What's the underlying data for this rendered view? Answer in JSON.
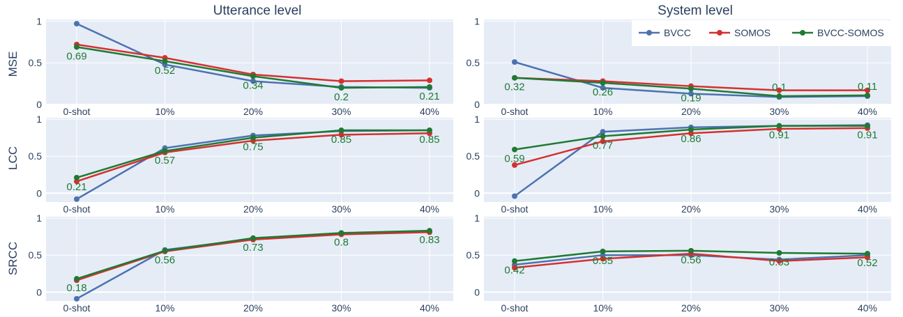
{
  "chart_data": {
    "type": "line",
    "columns": [
      "Utterance level",
      "System level"
    ],
    "rows": [
      "MSE",
      "LCC",
      "SRCC"
    ],
    "categories": [
      "0-shot",
      "10%",
      "20%",
      "30%",
      "40%"
    ],
    "legend": {
      "placement": "top-right",
      "entries": [
        "BVCC",
        "SOMOS",
        "BVCC-SOMOS"
      ]
    },
    "colors": {
      "BVCC": "#4c72b0",
      "SOMOS": "#d62f2f",
      "BVCC-SOMOS": "#1f7a32",
      "panel_bg": "#e5ecf6",
      "grid": "#ffffff"
    },
    "panels": [
      {
        "column": "Utterance level",
        "row": "MSE",
        "ylim": [
          0,
          1.02
        ],
        "yticks": [
          "0",
          "0.5",
          "1"
        ],
        "ytick_values": [
          0,
          0.5,
          1
        ],
        "series": [
          {
            "name": "BVCC",
            "values": [
              0.97,
              0.48,
              0.28,
              0.21,
              0.2
            ]
          },
          {
            "name": "SOMOS",
            "values": [
              0.72,
              0.56,
              0.36,
              0.28,
              0.29
            ]
          },
          {
            "name": "BVCC-SOMOS",
            "values": [
              0.69,
              0.52,
              0.34,
              0.2,
              0.21
            ]
          }
        ],
        "labels": [
          "0.69",
          "0.52",
          "0.34",
          "0.2",
          "0.21"
        ]
      },
      {
        "column": "System level",
        "row": "MSE",
        "ylim": [
          0,
          1.02
        ],
        "yticks": [
          "0",
          "0.5",
          "1"
        ],
        "ytick_values": [
          0,
          0.5,
          1
        ],
        "series": [
          {
            "name": "BVCC",
            "values": [
              0.51,
              0.2,
              0.13,
              0.09,
              0.1
            ]
          },
          {
            "name": "SOMOS",
            "values": [
              0.32,
              0.28,
              0.22,
              0.17,
              0.17
            ]
          },
          {
            "name": "BVCC-SOMOS",
            "values": [
              0.32,
              0.26,
              0.19,
              0.1,
              0.11
            ]
          }
        ],
        "labels": [
          "0.32",
          "0.26",
          "0.19",
          "0.1",
          "0.11"
        ]
      },
      {
        "column": "Utterance level",
        "row": "LCC",
        "ylim": [
          -0.12,
          1.02
        ],
        "yticks": [
          "0",
          "0.5",
          "1"
        ],
        "ytick_values": [
          0,
          0.5,
          1
        ],
        "series": [
          {
            "name": "BVCC",
            "values": [
              -0.08,
              0.61,
              0.78,
              0.84,
              0.85
            ]
          },
          {
            "name": "SOMOS",
            "values": [
              0.16,
              0.55,
              0.71,
              0.79,
              0.81
            ]
          },
          {
            "name": "BVCC-SOMOS",
            "values": [
              0.21,
              0.57,
              0.75,
              0.85,
              0.85
            ]
          }
        ],
        "labels": [
          "0.21",
          "0.57",
          "0.75",
          "0.85",
          "0.85"
        ]
      },
      {
        "column": "System level",
        "row": "LCC",
        "ylim": [
          -0.12,
          1.02
        ],
        "yticks": [
          "0",
          "0.5",
          "1"
        ],
        "ytick_values": [
          0,
          0.5,
          1
        ],
        "series": [
          {
            "name": "BVCC",
            "values": [
              -0.04,
              0.83,
              0.89,
              0.91,
              0.92
            ]
          },
          {
            "name": "SOMOS",
            "values": [
              0.38,
              0.7,
              0.81,
              0.87,
              0.88
            ]
          },
          {
            "name": "BVCC-SOMOS",
            "values": [
              0.59,
              0.77,
              0.86,
              0.91,
              0.91
            ]
          }
        ],
        "labels": [
          "0.59",
          "0.77",
          "0.86",
          "0.91",
          "0.91"
        ]
      },
      {
        "column": "Utterance level",
        "row": "SRCC",
        "ylim": [
          -0.12,
          1.02
        ],
        "yticks": [
          "0",
          "0.5",
          "1"
        ],
        "ytick_values": [
          0,
          0.5,
          1
        ],
        "series": [
          {
            "name": "BVCC",
            "values": [
              -0.09,
              0.57,
              0.72,
              0.79,
              0.82
            ]
          },
          {
            "name": "SOMOS",
            "values": [
              0.16,
              0.55,
              0.71,
              0.78,
              0.81
            ]
          },
          {
            "name": "BVCC-SOMOS",
            "values": [
              0.18,
              0.56,
              0.73,
              0.8,
              0.83
            ]
          }
        ],
        "labels": [
          "0.18",
          "0.56",
          "0.73",
          "0.8",
          "0.83"
        ]
      },
      {
        "column": "System level",
        "row": "SRCC",
        "ylim": [
          -0.12,
          1.02
        ],
        "yticks": [
          "0",
          "0.5",
          "1"
        ],
        "ytick_values": [
          0,
          0.5,
          1
        ],
        "series": [
          {
            "name": "BVCC",
            "values": [
              0.37,
              0.5,
              0.5,
              0.44,
              0.5
            ]
          },
          {
            "name": "SOMOS",
            "values": [
              0.33,
              0.45,
              0.52,
              0.42,
              0.47
            ]
          },
          {
            "name": "BVCC-SOMOS",
            "values": [
              0.42,
              0.55,
              0.56,
              0.53,
              0.52
            ]
          }
        ],
        "labels": [
          "0.42",
          "0.55",
          "0.56",
          "0.53",
          "0.52"
        ]
      }
    ],
    "label_series": "BVCC-SOMOS",
    "grid": true
  }
}
